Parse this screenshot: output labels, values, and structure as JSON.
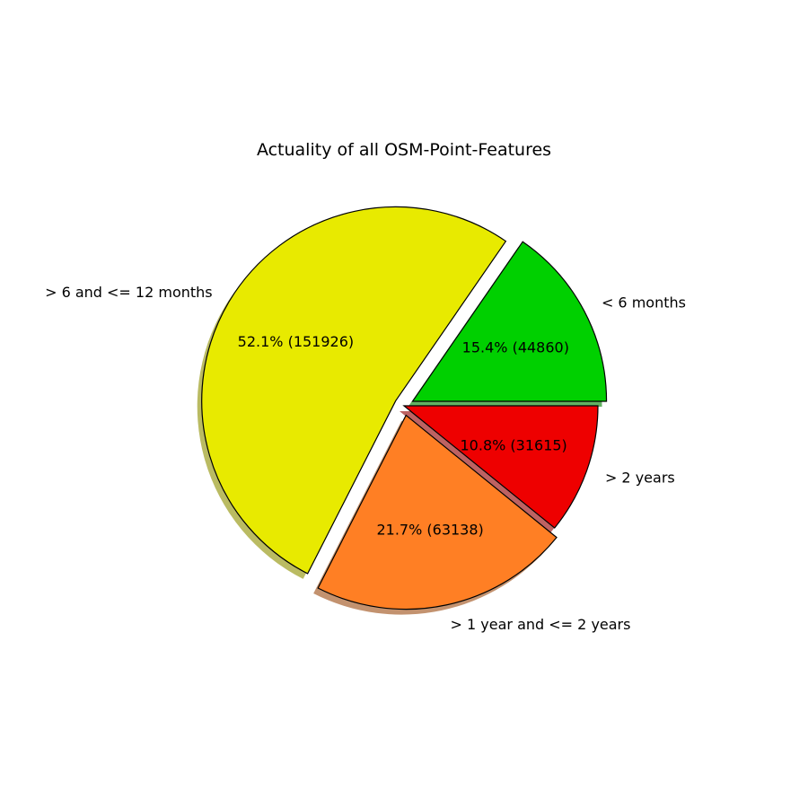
{
  "chart_data": {
    "type": "pie",
    "title": "Actuality of all OSM-Point-Features",
    "shadow": true,
    "start_angle_deg": 0,
    "direction": "counterclockwise",
    "slices": [
      {
        "label": "< 6 months",
        "value": 44860,
        "percent_label": "15.4%  (44860)",
        "color": "#00d000",
        "explode": 0.05
      },
      {
        "label": "> 6 and <= 12 months",
        "value": 151926,
        "percent_label": "52.1%  (151926)",
        "color": "#e8ea00",
        "explode": 0.05
      },
      {
        "label": "> 1 year and <= 2 years",
        "value": 63138,
        "percent_label": "21.7%  (63138)",
        "color": "#ff7f24",
        "explode": 0.05
      },
      {
        "label": "> 2 years",
        "value": 31615,
        "percent_label": "10.8%  (31615)",
        "color": "#ee0000",
        "explode": 0.0
      }
    ]
  }
}
